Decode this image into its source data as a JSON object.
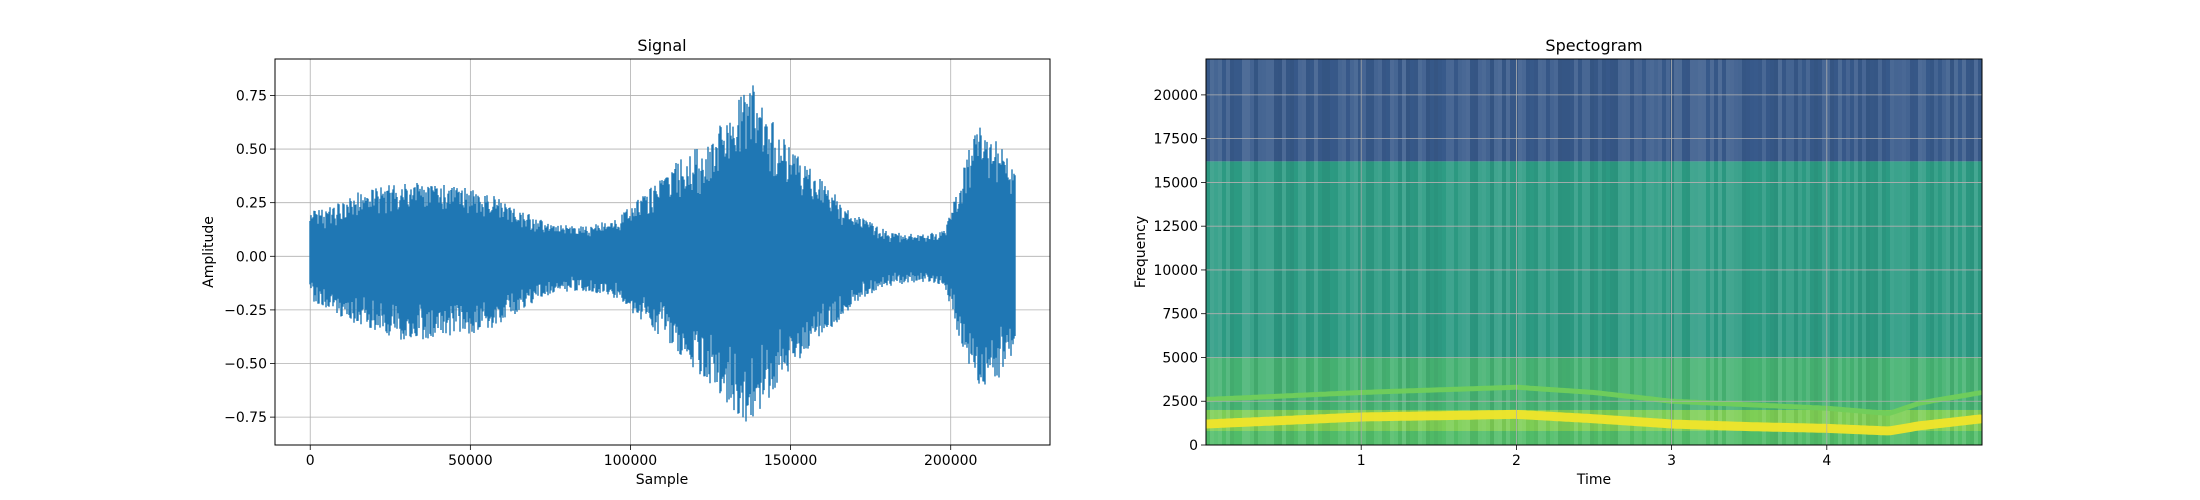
{
  "chart_data": [
    {
      "type": "line",
      "title": "Signal",
      "xlabel": "Sample",
      "ylabel": "Amplitude",
      "xlim": [
        -11000,
        231000
      ],
      "ylim": [
        -0.88,
        0.92
      ],
      "xticks": [
        0,
        50000,
        100000,
        150000,
        200000
      ],
      "xtick_labels": [
        "0",
        "50000",
        "100000",
        "150000",
        "200000"
      ],
      "yticks": [
        0.75,
        0.5,
        0.25,
        0.0,
        -0.25,
        -0.5,
        -0.75
      ],
      "ytick_labels": [
        "0.75",
        "0.50",
        "0.25",
        "0.00",
        "−0.25",
        "−0.50",
        "−0.75"
      ],
      "grid": true,
      "color": "#1f77b4",
      "series": [
        {
          "x": [
            0,
            5000,
            15000,
            30000,
            45000,
            55000,
            65000,
            75000,
            85000,
            95000,
            105000,
            115000,
            125000,
            132000,
            137000,
            142000,
            150000,
            160000,
            170000,
            180000,
            190000,
            198000,
            202000,
            208000,
            214000,
            220000
          ],
          "upper": [
            0.22,
            0.22,
            0.3,
            0.35,
            0.33,
            0.3,
            0.22,
            0.15,
            0.14,
            0.17,
            0.3,
            0.45,
            0.55,
            0.7,
            0.84,
            0.7,
            0.5,
            0.35,
            0.2,
            0.12,
            0.1,
            0.12,
            0.3,
            0.62,
            0.55,
            0.42
          ],
          "lower": [
            -0.2,
            -0.25,
            -0.32,
            -0.4,
            -0.37,
            -0.35,
            -0.26,
            -0.18,
            -0.16,
            -0.2,
            -0.32,
            -0.45,
            -0.6,
            -0.72,
            -0.8,
            -0.7,
            -0.52,
            -0.38,
            -0.22,
            -0.14,
            -0.12,
            -0.14,
            -0.35,
            -0.6,
            -0.62,
            -0.45
          ]
        }
      ]
    },
    {
      "type": "heatmap",
      "title": "Spectogram",
      "xlabel": "Time",
      "ylabel": "Frequency",
      "xlim": [
        0,
        5
      ],
      "ylim": [
        0,
        22050
      ],
      "xticks": [
        1,
        2,
        3,
        4
      ],
      "xtick_labels": [
        "1",
        "2",
        "3",
        "4"
      ],
      "yticks": [
        0,
        2500,
        5000,
        7500,
        10000,
        12500,
        15000,
        17500,
        20000
      ],
      "ytick_labels": [
        "0",
        "2500",
        "5000",
        "7500",
        "10000",
        "12500",
        "15000",
        "17500",
        "20000"
      ],
      "grid": true,
      "colormap": "viridis",
      "bands": [
        {
          "freq_range": [
            16200,
            22050
          ],
          "level": 0.28
        },
        {
          "freq_range": [
            5000,
            16200
          ],
          "level": 0.55
        },
        {
          "freq_range": [
            2000,
            5000
          ],
          "level": 0.65
        },
        {
          "freq_range": [
            800,
            2000
          ],
          "level": 0.8
        },
        {
          "freq_range": [
            0,
            800
          ],
          "level": 0.7
        }
      ],
      "harmonics": [
        {
          "time": [
            0,
            1,
            2,
            2.5,
            3,
            3.5,
            4,
            4.4,
            4.6,
            5
          ],
          "freq": [
            1200,
            1600,
            1750,
            1500,
            1200,
            1050,
            950,
            800,
            1100,
            1500
          ],
          "level": 0.98
        },
        {
          "time": [
            0,
            1,
            2,
            2.5,
            3,
            3.5,
            4,
            4.4,
            4.6,
            5
          ],
          "freq": [
            2600,
            3000,
            3300,
            3000,
            2500,
            2300,
            2100,
            1800,
            2400,
            3000
          ],
          "level": 0.78
        }
      ]
    }
  ]
}
